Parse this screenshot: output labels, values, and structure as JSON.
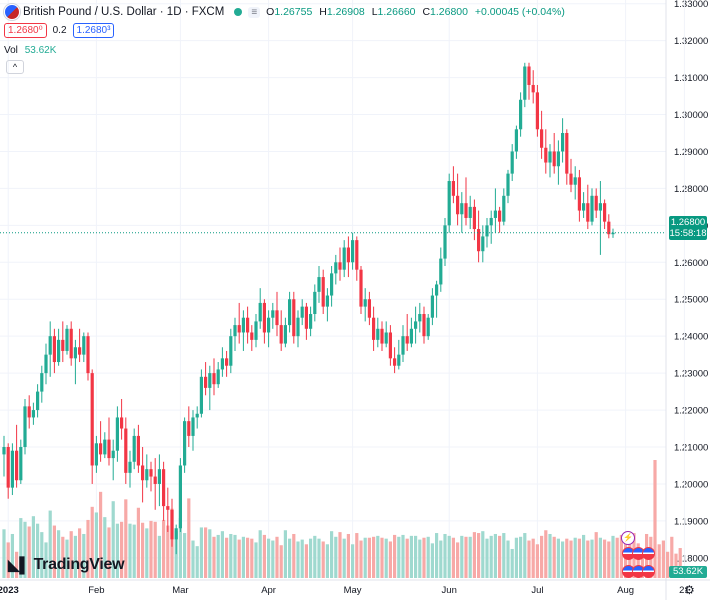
{
  "header": {
    "symbol": "British Pound / U.S. Dollar · 1D · FXCM",
    "pill": "≡",
    "ohlc": [
      {
        "k": "O",
        "v": "1.26755"
      },
      {
        "k": "H",
        "v": "1.26908"
      },
      {
        "k": "L",
        "v": "1.26660"
      },
      {
        "k": "C",
        "v": "1.26800"
      }
    ],
    "change": "+0.00045 (+0.04%)",
    "sell": "1.2680⁰",
    "spread": "0.2",
    "buy": "1.2680³",
    "vol_label": "Vol",
    "vol_value": "53.62K",
    "collapse": "^"
  },
  "logo": "TradingView",
  "price_tag": {
    "price": "1.26800",
    "countdown": "15:58:18"
  },
  "vol_tag": "53.62K",
  "indicator_icon": "⚡",
  "colors": {
    "up": "#22ab94",
    "down": "#f23645",
    "volUp": "#9fd9cf",
    "volDown": "#f7a9a7",
    "grid": "#f0f3fa",
    "last": "#089981"
  },
  "chart_data": {
    "type": "candlestick",
    "title": "British Pound / U.S. Dollar · 1D · FXCM",
    "ylim": [
      1.174,
      1.331
    ],
    "y_ticks": [
      "1.33000",
      "1.32000",
      "1.31000",
      "1.30000",
      "1.29000",
      "1.28000",
      "1.27000",
      "1.26000",
      "1.25000",
      "1.24000",
      "1.23000",
      "1.22000",
      "1.21000",
      "1.20000",
      "1.19000",
      "1.18000"
    ],
    "x_ticks": [
      {
        "label": "2023",
        "index": 1
      },
      {
        "label": "Feb",
        "index": 22
      },
      {
        "label": "Mar",
        "index": 42
      },
      {
        "label": "Apr",
        "index": 63
      },
      {
        "label": "May",
        "index": 83
      },
      {
        "label": "Jun",
        "index": 106
      },
      {
        "label": "Jul",
        "index": 127
      },
      {
        "label": "Aug",
        "index": 148
      },
      {
        "label": "21",
        "index": 162
      }
    ],
    "last_price": 1.268,
    "candles": [
      [
        1.208,
        1.213,
        1.202,
        1.21
      ],
      [
        1.21,
        1.211,
        1.196,
        1.199
      ],
      [
        1.199,
        1.211,
        1.197,
        1.209
      ],
      [
        1.209,
        1.216,
        1.199,
        1.201
      ],
      [
        1.201,
        1.212,
        1.2,
        1.21
      ],
      [
        1.21,
        1.223,
        1.208,
        1.221
      ],
      [
        1.221,
        1.224,
        1.215,
        1.218
      ],
      [
        1.218,
        1.222,
        1.216,
        1.22
      ],
      [
        1.22,
        1.227,
        1.218,
        1.225
      ],
      [
        1.225,
        1.232,
        1.222,
        1.23
      ],
      [
        1.23,
        1.238,
        1.227,
        1.235
      ],
      [
        1.235,
        1.244,
        1.229,
        1.24
      ],
      [
        1.24,
        1.242,
        1.23,
        1.233
      ],
      [
        1.233,
        1.242,
        1.232,
        1.239
      ],
      [
        1.239,
        1.244,
        1.233,
        1.236
      ],
      [
        1.236,
        1.243,
        1.235,
        1.242
      ],
      [
        1.242,
        1.244,
        1.232,
        1.234
      ],
      [
        1.234,
        1.239,
        1.227,
        1.237
      ],
      [
        1.237,
        1.242,
        1.233,
        1.235
      ],
      [
        1.235,
        1.241,
        1.233,
        1.24
      ],
      [
        1.24,
        1.241,
        1.228,
        1.23
      ],
      [
        1.23,
        1.231,
        1.2,
        1.205
      ],
      [
        1.205,
        1.213,
        1.203,
        1.211
      ],
      [
        1.211,
        1.217,
        1.206,
        1.208
      ],
      [
        1.208,
        1.214,
        1.207,
        1.212
      ],
      [
        1.212,
        1.218,
        1.205,
        1.207
      ],
      [
        1.207,
        1.212,
        1.201,
        1.209
      ],
      [
        1.209,
        1.221,
        1.206,
        1.218
      ],
      [
        1.218,
        1.223,
        1.212,
        1.215
      ],
      [
        1.215,
        1.218,
        1.2,
        1.203
      ],
      [
        1.203,
        1.209,
        1.199,
        1.206
      ],
      [
        1.206,
        1.215,
        1.204,
        1.213
      ],
      [
        1.213,
        1.216,
        1.203,
        1.205
      ],
      [
        1.205,
        1.21,
        1.195,
        1.201
      ],
      [
        1.201,
        1.208,
        1.199,
        1.204
      ],
      [
        1.204,
        1.206,
        1.198,
        1.202
      ],
      [
        1.202,
        1.207,
        1.193,
        1.2
      ],
      [
        1.2,
        1.208,
        1.194,
        1.204
      ],
      [
        1.204,
        1.206,
        1.19,
        1.194
      ],
      [
        1.194,
        1.199,
        1.187,
        1.193
      ],
      [
        1.193,
        1.196,
        1.183,
        1.185
      ],
      [
        1.185,
        1.189,
        1.181,
        1.188
      ],
      [
        1.188,
        1.207,
        1.187,
        1.205
      ],
      [
        1.205,
        1.218,
        1.203,
        1.217
      ],
      [
        1.217,
        1.221,
        1.21,
        1.213
      ],
      [
        1.213,
        1.22,
        1.209,
        1.218
      ],
      [
        1.218,
        1.221,
        1.215,
        1.219
      ],
      [
        1.219,
        1.231,
        1.218,
        1.229
      ],
      [
        1.229,
        1.233,
        1.224,
        1.226
      ],
      [
        1.226,
        1.232,
        1.22,
        1.23
      ],
      [
        1.23,
        1.234,
        1.224,
        1.227
      ],
      [
        1.227,
        1.233,
        1.226,
        1.231
      ],
      [
        1.231,
        1.237,
        1.229,
        1.234
      ],
      [
        1.234,
        1.236,
        1.229,
        1.232
      ],
      [
        1.232,
        1.242,
        1.23,
        1.24
      ],
      [
        1.24,
        1.245,
        1.236,
        1.243
      ],
      [
        1.243,
        1.249,
        1.238,
        1.241
      ],
      [
        1.241,
        1.247,
        1.236,
        1.245
      ],
      [
        1.245,
        1.248,
        1.238,
        1.241
      ],
      [
        1.241,
        1.243,
        1.236,
        1.239
      ],
      [
        1.239,
        1.246,
        1.237,
        1.244
      ],
      [
        1.244,
        1.253,
        1.242,
        1.249
      ],
      [
        1.249,
        1.25,
        1.238,
        1.241
      ],
      [
        1.241,
        1.247,
        1.237,
        1.245
      ],
      [
        1.245,
        1.249,
        1.242,
        1.247
      ],
      [
        1.247,
        1.252,
        1.24,
        1.243
      ],
      [
        1.243,
        1.247,
        1.236,
        1.238
      ],
      [
        1.238,
        1.245,
        1.237,
        1.243
      ],
      [
        1.243,
        1.252,
        1.241,
        1.25
      ],
      [
        1.25,
        1.252,
        1.238,
        1.24
      ],
      [
        1.24,
        1.247,
        1.237,
        1.245
      ],
      [
        1.245,
        1.25,
        1.243,
        1.248
      ],
      [
        1.248,
        1.249,
        1.239,
        1.242
      ],
      [
        1.242,
        1.248,
        1.24,
        1.246
      ],
      [
        1.246,
        1.254,
        1.244,
        1.252
      ],
      [
        1.252,
        1.259,
        1.249,
        1.256
      ],
      [
        1.256,
        1.258,
        1.246,
        1.248
      ],
      [
        1.248,
        1.253,
        1.244,
        1.251
      ],
      [
        1.251,
        1.259,
        1.248,
        1.257
      ],
      [
        1.257,
        1.262,
        1.254,
        1.26
      ],
      [
        1.26,
        1.264,
        1.255,
        1.258
      ],
      [
        1.258,
        1.266,
        1.256,
        1.264
      ],
      [
        1.264,
        1.267,
        1.256,
        1.26
      ],
      [
        1.26,
        1.268,
        1.258,
        1.266
      ],
      [
        1.266,
        1.267,
        1.255,
        1.258
      ],
      [
        1.258,
        1.259,
        1.246,
        1.248
      ],
      [
        1.248,
        1.253,
        1.244,
        1.25
      ],
      [
        1.25,
        1.252,
        1.243,
        1.245
      ],
      [
        1.245,
        1.248,
        1.236,
        1.239
      ],
      [
        1.239,
        1.245,
        1.237,
        1.242
      ],
      [
        1.242,
        1.244,
        1.236,
        1.238
      ],
      [
        1.238,
        1.244,
        1.237,
        1.241
      ],
      [
        1.241,
        1.243,
        1.232,
        1.234
      ],
      [
        1.234,
        1.237,
        1.23,
        1.232
      ],
      [
        1.232,
        1.239,
        1.231,
        1.235
      ],
      [
        1.235,
        1.243,
        1.233,
        1.24
      ],
      [
        1.24,
        1.246,
        1.236,
        1.238
      ],
      [
        1.238,
        1.245,
        1.237,
        1.242
      ],
      [
        1.242,
        1.248,
        1.238,
        1.244
      ],
      [
        1.244,
        1.249,
        1.241,
        1.246
      ],
      [
        1.246,
        1.248,
        1.238,
        1.24
      ],
      [
        1.24,
        1.246,
        1.239,
        1.245
      ],
      [
        1.245,
        1.253,
        1.243,
        1.251
      ],
      [
        1.251,
        1.255,
        1.245,
        1.254
      ],
      [
        1.254,
        1.264,
        1.252,
        1.261
      ],
      [
        1.261,
        1.272,
        1.259,
        1.27
      ],
      [
        1.27,
        1.284,
        1.268,
        1.282
      ],
      [
        1.282,
        1.286,
        1.276,
        1.278
      ],
      [
        1.278,
        1.284,
        1.27,
        1.273
      ],
      [
        1.273,
        1.279,
        1.268,
        1.276
      ],
      [
        1.276,
        1.283,
        1.27,
        1.272
      ],
      [
        1.272,
        1.278,
        1.269,
        1.275
      ],
      [
        1.275,
        1.277,
        1.266,
        1.269
      ],
      [
        1.269,
        1.274,
        1.26,
        1.263
      ],
      [
        1.263,
        1.27,
        1.26,
        1.267
      ],
      [
        1.267,
        1.272,
        1.264,
        1.27
      ],
      [
        1.27,
        1.274,
        1.265,
        1.272
      ],
      [
        1.272,
        1.28,
        1.268,
        1.274
      ],
      [
        1.274,
        1.275,
        1.268,
        1.271
      ],
      [
        1.271,
        1.28,
        1.27,
        1.278
      ],
      [
        1.278,
        1.285,
        1.276,
        1.284
      ],
      [
        1.284,
        1.292,
        1.282,
        1.29
      ],
      [
        1.29,
        1.297,
        1.288,
        1.296
      ],
      [
        1.296,
        1.306,
        1.294,
        1.304
      ],
      [
        1.304,
        1.314,
        1.302,
        1.313
      ],
      [
        1.313,
        1.314,
        1.304,
        1.308
      ],
      [
        1.308,
        1.312,
        1.303,
        1.306
      ],
      [
        1.306,
        1.308,
        1.294,
        1.296
      ],
      [
        1.296,
        1.301,
        1.288,
        1.291
      ],
      [
        1.291,
        1.296,
        1.284,
        1.287
      ],
      [
        1.287,
        1.292,
        1.283,
        1.29
      ],
      [
        1.29,
        1.295,
        1.284,
        1.286
      ],
      [
        1.286,
        1.293,
        1.281,
        1.29
      ],
      [
        1.29,
        1.299,
        1.287,
        1.295
      ],
      [
        1.295,
        1.296,
        1.281,
        1.284
      ],
      [
        1.284,
        1.288,
        1.279,
        1.281
      ],
      [
        1.281,
        1.286,
        1.277,
        1.283
      ],
      [
        1.283,
        1.285,
        1.271,
        1.274
      ],
      [
        1.274,
        1.279,
        1.272,
        1.276
      ],
      [
        1.276,
        1.281,
        1.269,
        1.271
      ],
      [
        1.271,
        1.28,
        1.27,
        1.278
      ],
      [
        1.278,
        1.28,
        1.272,
        1.274
      ],
      [
        1.274,
        1.282,
        1.262,
        1.276
      ],
      [
        1.276,
        1.277,
        1.269,
        1.271
      ],
      [
        1.271,
        1.273,
        1.2665,
        1.2676
      ],
      [
        1.2676,
        1.2691,
        1.2666,
        1.268
      ]
    ],
    "volume": [
      52,
      38,
      47,
      28,
      64,
      60,
      55,
      66,
      58,
      49,
      38,
      72,
      56,
      51,
      44,
      41,
      50,
      45,
      53,
      47,
      62,
      76,
      70,
      92,
      65,
      54,
      82,
      58,
      60,
      84,
      58,
      57,
      75,
      59,
      53,
      61,
      60,
      45,
      62,
      56,
      74,
      50,
      64,
      48,
      85,
      40,
      34,
      54,
      54,
      52,
      44,
      46,
      50,
      43,
      47,
      46,
      41,
      44,
      43,
      42,
      38,
      51,
      46,
      42,
      40,
      44,
      35,
      51,
      42,
      47,
      39,
      41,
      36,
      42,
      45,
      42,
      39,
      36,
      50,
      44,
      49,
      42,
      47,
      36,
      48,
      40,
      43,
      43,
      44,
      45,
      43,
      42,
      39,
      46,
      44,
      46,
      42,
      45,
      45,
      41,
      43,
      44,
      37,
      48,
      40,
      47,
      45,
      43,
      38,
      45,
      44,
      44,
      49,
      48,
      50,
      42,
      45,
      47,
      45,
      48,
      40,
      31,
      43,
      44,
      48,
      40,
      42,
      36,
      45,
      51,
      47,
      44,
      42,
      39,
      42,
      40,
      43,
      42,
      46,
      40,
      41,
      49,
      43,
      41,
      39,
      45,
      43,
      46,
      48,
      45,
      48,
      37,
      31,
      47,
      44,
      126,
      36,
      40,
      28,
      44,
      26,
      32
    ]
  }
}
